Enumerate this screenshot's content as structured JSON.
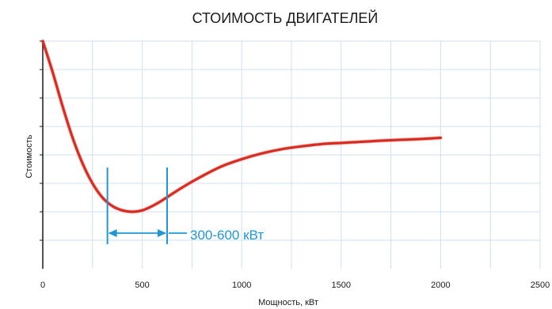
{
  "chart_data": {
    "type": "line",
    "title": "СТОИМОСТЬ ДВИГАТЕЛЕЙ",
    "xlabel": "Мощность, кВт",
    "ylabel": "Стоимость",
    "xlim": [
      0,
      2500
    ],
    "ylim": [
      0,
      8
    ],
    "x_ticks": [
      "0",
      "500",
      "1000",
      "1500",
      "2000",
      "2500"
    ],
    "y_ticks_labeled": false,
    "grid": true,
    "colors": {
      "line": "#e0281c",
      "marker": "#1f97d4",
      "grid": "#cfe0ef"
    },
    "series": [
      {
        "x": [
          0,
          50,
          100,
          150,
          200,
          250,
          300,
          350,
          400,
          450,
          500,
          550,
          600,
          700,
          800,
          900,
          1000,
          1100,
          1200,
          1300,
          1400,
          1500,
          1600,
          1700,
          1800,
          1900,
          2000
        ],
        "y": [
          8.0,
          6.9,
          5.7,
          4.6,
          3.7,
          3.0,
          2.5,
          2.2,
          2.05,
          2.0,
          2.05,
          2.2,
          2.4,
          2.85,
          3.25,
          3.6,
          3.85,
          4.05,
          4.2,
          4.3,
          4.38,
          4.42,
          4.46,
          4.5,
          4.53,
          4.56,
          4.6
        ]
      }
    ],
    "annotation": {
      "label": "300-600 кВт",
      "x_start": 325,
      "x_end": 625
    }
  }
}
